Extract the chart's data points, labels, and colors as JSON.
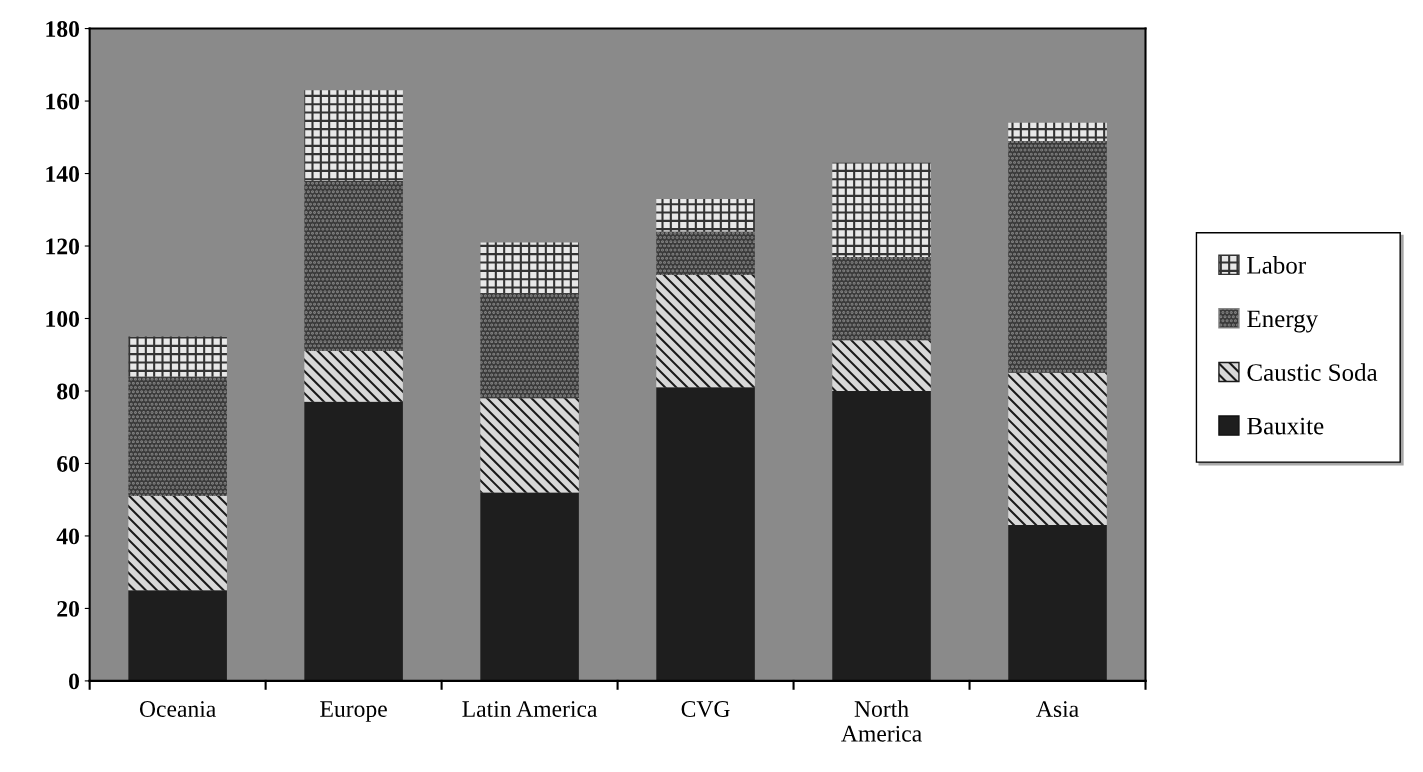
{
  "chart_data": {
    "type": "bar",
    "stacked": true,
    "categories": [
      "Oceania",
      "Europe",
      "Latin America",
      "CVG",
      "North\nAmerica",
      "Asia"
    ],
    "series": [
      {
        "name": "Bauxite",
        "color": "#1e1e1e",
        "values": [
          25,
          77,
          52,
          81,
          80,
          43
        ]
      },
      {
        "name": "Caustic Soda",
        "color": "#d8d8d8",
        "values": [
          26,
          14,
          26,
          31,
          14,
          42
        ]
      },
      {
        "name": "Energy",
        "color": "#3a3a3a",
        "values": [
          33,
          47,
          29,
          12,
          23,
          64
        ]
      },
      {
        "name": "Labor",
        "color": "#e8e8e8",
        "values": [
          11,
          25,
          14,
          9,
          26,
          5
        ]
      }
    ],
    "ylim": [
      0,
      180
    ],
    "yticks": [
      0,
      20,
      40,
      60,
      80,
      100,
      120,
      140,
      160,
      180
    ],
    "grid": false,
    "legend": "right"
  }
}
